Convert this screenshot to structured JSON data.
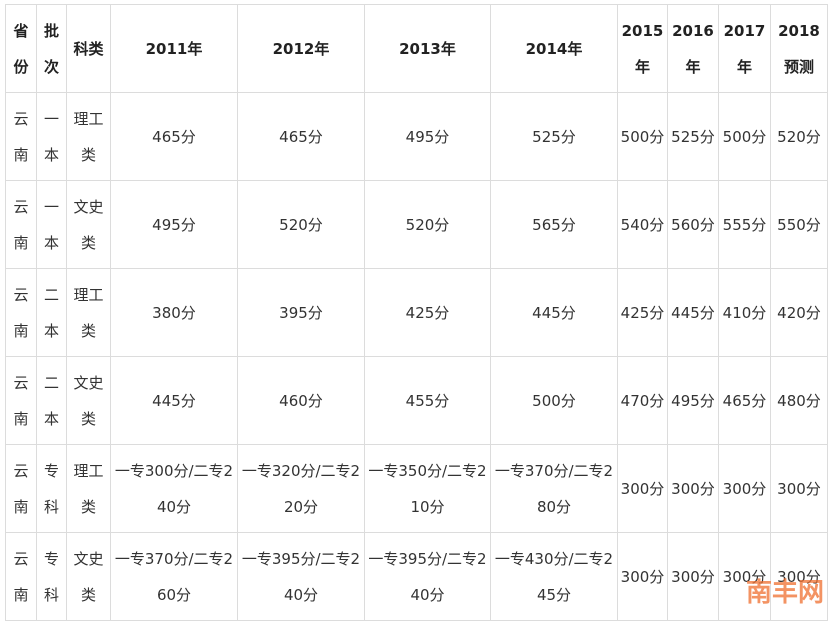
{
  "table": {
    "header": [
      "省份",
      "批次",
      "科类",
      "2011年",
      "2012年",
      "2013年",
      "2014年",
      "2015年",
      "2016年",
      "2017年",
      "2018预测"
    ],
    "rows": [
      [
        "云南",
        "一本",
        "理工类",
        "465分",
        "465分",
        "495分",
        "525分",
        "500分",
        "525分",
        "500分",
        "520分"
      ],
      [
        "云南",
        "一本",
        "文史类",
        "495分",
        "520分",
        "520分",
        "565分",
        "540分",
        "560分",
        "555分",
        "550分"
      ],
      [
        "云南",
        "二本",
        "理工类",
        "380分",
        "395分",
        "425分",
        "445分",
        "425分",
        "445分",
        "410分",
        "420分"
      ],
      [
        "云南",
        "二本",
        "文史类",
        "445分",
        "460分",
        "455分",
        "500分",
        "470分",
        "495分",
        "465分",
        "480分"
      ],
      [
        "云南",
        "专科",
        "理工类",
        "一专300分/二专240分",
        "一专320分/二专220分",
        "一专350分/二专210分",
        "一专370分/二专280分",
        "300分",
        "300分",
        "300分",
        "300分"
      ],
      [
        "云南",
        "专科",
        "文史类",
        "一专370分/二专260分",
        "一专395分/二专240分",
        "一专395分/二专240分",
        "一专430分/二专245分",
        "300分",
        "300分",
        "300分",
        "300分"
      ]
    ]
  },
  "logo": "南丰网"
}
